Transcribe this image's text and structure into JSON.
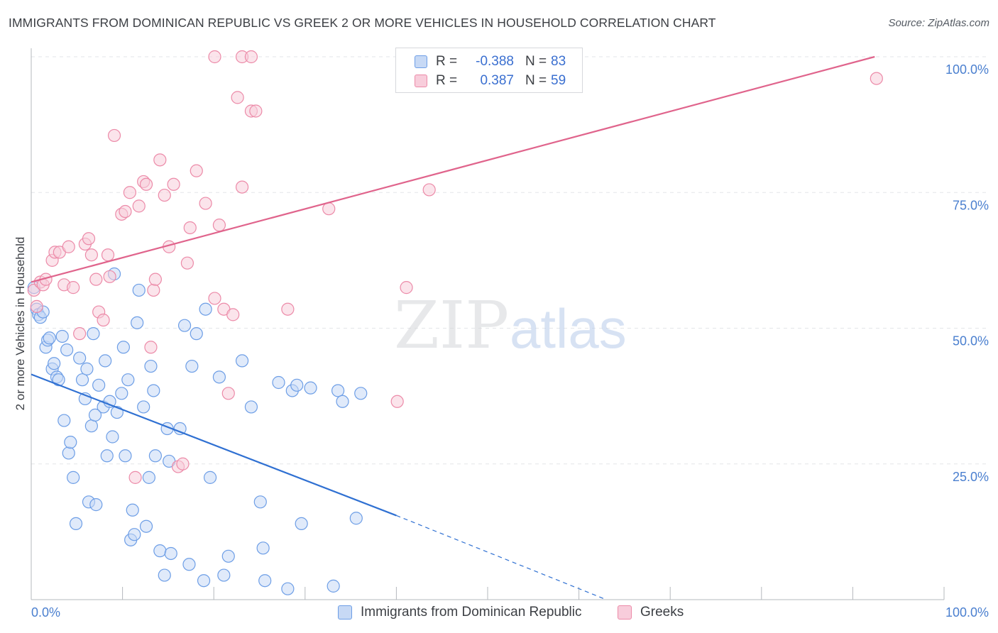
{
  "title": "IMMIGRANTS FROM DOMINICAN REPUBLIC VS GREEK 2 OR MORE VEHICLES IN HOUSEHOLD CORRELATION CHART",
  "source": "Source: ZipAtlas.com",
  "watermark": {
    "zip": "ZIP",
    "atlas": "atlas"
  },
  "legend_top": [
    {
      "r_label": "R =",
      "r_value": "-0.388",
      "n_label": "N =",
      "n_value": "83"
    },
    {
      "r_label": "R =",
      "r_value": "0.387",
      "n_label": "N =",
      "n_value": "59"
    }
  ],
  "legend_bottom": [
    "Immigrants from Dominican Republic",
    "Greeks"
  ],
  "chart_data": {
    "type": "scatter",
    "title": "IMMIGRANTS FROM DOMINICAN REPUBLIC VS GREEK 2 OR MORE VEHICLES IN HOUSEHOLD CORRELATION CHART",
    "xlabel": "",
    "ylabel": "2 or more Vehicles in Household",
    "xlim": [
      0,
      100
    ],
    "ylim": [
      0,
      100
    ],
    "x_tick_labels": [
      "0.0%",
      "100.0%"
    ],
    "y_tick_labels": [
      "25.0%",
      "50.0%",
      "75.0%",
      "100.0%"
    ],
    "y_ticks": [
      25,
      50,
      75,
      100
    ],
    "grid": true,
    "legend_placement": "top-center",
    "colors": {
      "blue": "#6d9ee6",
      "blue_fill": "#c7d9f5",
      "pink": "#ec8aa8",
      "pink_fill": "#f8cddb",
      "blue_line": "#2f70d2",
      "pink_line": "#e0648c"
    },
    "series": [
      {
        "name": "Immigrants from Dominican Republic",
        "color": "blue",
        "points": [
          [
            0.3,
            57.5
          ],
          [
            0.6,
            53.5
          ],
          [
            0.8,
            52.5
          ],
          [
            1.0,
            52.0
          ],
          [
            1.3,
            53.0
          ],
          [
            1.6,
            46.5
          ],
          [
            1.8,
            47.8
          ],
          [
            2.0,
            48.2
          ],
          [
            2.3,
            42.5
          ],
          [
            2.5,
            43.5
          ],
          [
            2.8,
            41.0
          ],
          [
            3.0,
            40.5
          ],
          [
            3.4,
            48.5
          ],
          [
            3.6,
            33.0
          ],
          [
            3.9,
            46.0
          ],
          [
            4.1,
            27.0
          ],
          [
            4.3,
            29.0
          ],
          [
            4.6,
            22.5
          ],
          [
            4.9,
            14.0
          ],
          [
            5.3,
            44.5
          ],
          [
            5.6,
            40.5
          ],
          [
            5.9,
            37.0
          ],
          [
            6.1,
            42.5
          ],
          [
            6.3,
            18.0
          ],
          [
            6.6,
            32.0
          ],
          [
            6.8,
            49.0
          ],
          [
            7.1,
            17.5
          ],
          [
            7.4,
            39.5
          ],
          [
            7.9,
            35.5
          ],
          [
            8.1,
            44.0
          ],
          [
            8.3,
            26.5
          ],
          [
            8.6,
            36.5
          ],
          [
            8.9,
            30.0
          ],
          [
            9.1,
            60.0
          ],
          [
            9.4,
            34.5
          ],
          [
            9.9,
            38.0
          ],
          [
            10.1,
            46.5
          ],
          [
            10.3,
            26.5
          ],
          [
            10.6,
            40.5
          ],
          [
            10.9,
            11.0
          ],
          [
            11.1,
            16.5
          ],
          [
            11.3,
            12.0
          ],
          [
            11.6,
            51.0
          ],
          [
            11.8,
            57.0
          ],
          [
            12.3,
            35.5
          ],
          [
            12.6,
            13.5
          ],
          [
            12.9,
            22.5
          ],
          [
            13.1,
            43.0
          ],
          [
            13.4,
            38.5
          ],
          [
            13.6,
            26.5
          ],
          [
            14.1,
            9.0
          ],
          [
            14.6,
            4.5
          ],
          [
            14.9,
            31.5
          ],
          [
            15.1,
            25.5
          ],
          [
            15.3,
            8.5
          ],
          [
            16.3,
            31.5
          ],
          [
            16.8,
            50.5
          ],
          [
            17.3,
            6.5
          ],
          [
            17.6,
            43.0
          ],
          [
            18.1,
            49.0
          ],
          [
            18.9,
            3.5
          ],
          [
            19.1,
            53.5
          ],
          [
            19.6,
            22.5
          ],
          [
            20.6,
            41.0
          ],
          [
            21.1,
            4.5
          ],
          [
            21.6,
            8.0
          ],
          [
            23.1,
            44.0
          ],
          [
            24.1,
            35.5
          ],
          [
            25.1,
            18.0
          ],
          [
            25.4,
            9.5
          ],
          [
            25.6,
            3.5
          ],
          [
            27.1,
            40.0
          ],
          [
            28.1,
            2.0
          ],
          [
            28.6,
            38.5
          ],
          [
            29.1,
            39.5
          ],
          [
            29.6,
            14.0
          ],
          [
            30.6,
            39.0
          ],
          [
            33.1,
            2.5
          ],
          [
            33.6,
            38.5
          ],
          [
            34.1,
            36.5
          ],
          [
            35.6,
            15.0
          ],
          [
            36.1,
            38.0
          ],
          [
            7.0,
            34.0
          ]
        ]
      },
      {
        "name": "Greeks",
        "color": "pink",
        "points": [
          [
            0.3,
            57.0
          ],
          [
            0.6,
            54.0
          ],
          [
            1.0,
            58.5
          ],
          [
            1.3,
            58.0
          ],
          [
            1.6,
            59.0
          ],
          [
            2.3,
            62.5
          ],
          [
            2.6,
            64.0
          ],
          [
            3.1,
            64.0
          ],
          [
            3.6,
            58.0
          ],
          [
            4.1,
            65.0
          ],
          [
            4.6,
            57.5
          ],
          [
            5.3,
            49.0
          ],
          [
            5.9,
            65.5
          ],
          [
            6.3,
            66.5
          ],
          [
            6.6,
            63.5
          ],
          [
            7.1,
            59.0
          ],
          [
            7.4,
            53.0
          ],
          [
            7.9,
            51.5
          ],
          [
            8.4,
            63.5
          ],
          [
            8.6,
            59.5
          ],
          [
            9.1,
            85.5
          ],
          [
            9.9,
            71.0
          ],
          [
            10.3,
            71.5
          ],
          [
            10.8,
            75.0
          ],
          [
            11.4,
            22.5
          ],
          [
            11.8,
            72.5
          ],
          [
            12.3,
            77.0
          ],
          [
            12.6,
            76.5
          ],
          [
            13.1,
            46.5
          ],
          [
            13.4,
            57.0
          ],
          [
            13.6,
            59.0
          ],
          [
            14.1,
            81.0
          ],
          [
            14.6,
            74.5
          ],
          [
            15.1,
            65.0
          ],
          [
            15.6,
            76.5
          ],
          [
            16.1,
            24.5
          ],
          [
            16.6,
            25.0
          ],
          [
            17.1,
            62.0
          ],
          [
            17.4,
            68.5
          ],
          [
            18.1,
            79.0
          ],
          [
            19.1,
            73.0
          ],
          [
            20.1,
            55.5
          ],
          [
            20.6,
            69.0
          ],
          [
            21.1,
            53.5
          ],
          [
            21.6,
            38.0
          ],
          [
            22.1,
            52.5
          ],
          [
            22.6,
            92.5
          ],
          [
            23.1,
            76.0
          ],
          [
            24.1,
            90.0
          ],
          [
            24.6,
            90.0
          ],
          [
            20.1,
            100.0
          ],
          [
            23.1,
            100.0
          ],
          [
            24.1,
            100.0
          ],
          [
            28.1,
            53.5
          ],
          [
            32.6,
            72.0
          ],
          [
            40.1,
            36.5
          ],
          [
            41.1,
            57.5
          ],
          [
            43.6,
            75.5
          ],
          [
            92.6,
            96.0
          ]
        ]
      }
    ],
    "trend_lines": [
      {
        "series": "Immigrants from Dominican Republic",
        "solid": [
          [
            0,
            41.5
          ],
          [
            40,
            15.5
          ]
        ],
        "dashed": [
          [
            40,
            15.5
          ],
          [
            63,
            0
          ]
        ]
      },
      {
        "series": "Greeks",
        "solid": [
          [
            0,
            58.5
          ],
          [
            92.4,
            100
          ]
        ]
      }
    ]
  }
}
